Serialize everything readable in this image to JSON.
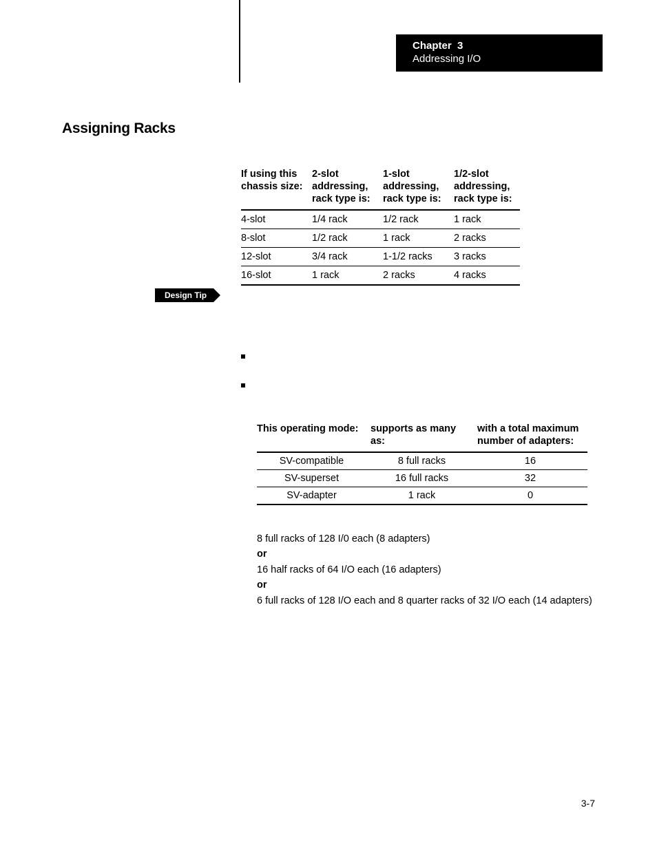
{
  "header": {
    "chapter_label": "Chapter",
    "chapter_num": "3",
    "title": "Addressing I/O"
  },
  "section_title": "Assigning Racks",
  "design_tip_label": "Design Tip",
  "table1": {
    "headers": {
      "c1": "If using this chassis size:",
      "c2": "2-slot addressing, rack type is:",
      "c3": "1-slot addressing, rack type is:",
      "c4": "1/2-slot addressing, rack type is:"
    },
    "rows": [
      {
        "chassis": "4-slot",
        "two_slot": "1/4 rack",
        "one_slot": "1/2 rack",
        "half_slot": "1 rack"
      },
      {
        "chassis": "8-slot",
        "two_slot": "1/2 rack",
        "one_slot": "1 rack",
        "half_slot": "2 racks"
      },
      {
        "chassis": "12-slot",
        "two_slot": "3/4 rack",
        "one_slot": "1-1/2 racks",
        "half_slot": "3 racks"
      },
      {
        "chassis": "16-slot",
        "two_slot": "1 rack",
        "one_slot": "2 racks",
        "half_slot": "4 racks"
      }
    ]
  },
  "bullets": [
    "",
    ""
  ],
  "table2": {
    "headers": {
      "c1": "This operating mode:",
      "c2": "supports as many as:",
      "c3": "with a total maximum number of adapters:"
    },
    "rows": [
      {
        "mode": "SV-compatible",
        "racks": "8 full racks",
        "adapters": "16"
      },
      {
        "mode": "SV-superset",
        "racks": "16 full racks",
        "adapters": "32"
      },
      {
        "mode": "SV-adapter",
        "racks": "1 rack",
        "adapters": "0"
      }
    ]
  },
  "example": {
    "line1": "8 full racks of 128 I/0 each (8 adapters)",
    "or": "or",
    "line2": "16 half racks of 64 I/O each (16 adapters)",
    "line3": "6 full racks of 128 I/O each and 8 quarter racks of 32 I/O each (14 adapters)"
  },
  "page_number": "3-7",
  "colors": {
    "black": "#000000",
    "white": "#ffffff"
  },
  "typography": {
    "body_fontsize_pt": 11,
    "section_title_fontsize_pt": 16,
    "header_fontsize_pt": 11,
    "tip_fontsize_pt": 9,
    "font_family": "Helvetica"
  }
}
